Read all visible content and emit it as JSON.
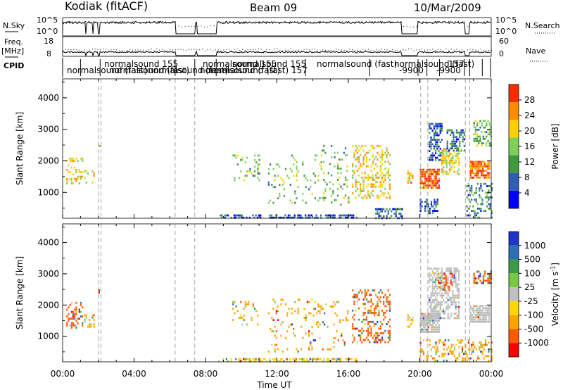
{
  "header": {
    "station": "Kodiak  (fitACF)",
    "beam": "Beam 09",
    "date": "10/Mar/2009"
  },
  "summary_panels": {
    "nsky_label": "N.Sky",
    "nsky_ticks": [
      "10^5",
      "10^0"
    ],
    "nsearch_label": "N.Search",
    "nsearch_ticks": [
      "10^5",
      "10^0"
    ],
    "freq_label_1": "Freq.",
    "freq_label_2": "[MHz]",
    "freq_ticks": [
      "18",
      "8"
    ],
    "nave_label": "Nave",
    "nave_ticks": [
      "60",
      "0"
    ],
    "cpid_label": "CPID",
    "cpid_labels": [
      "normalsound (fast)",
      "normalsound 155",
      "normalsound (fast)",
      "normalsound 155",
      "normalsound (fast)",
      "normalsound (fast)",
      "normalsound 155",
      "normalsound (fast) 157",
      "normalsound (fast)",
      "normalsound (fast)",
      "-9900",
      "-9900",
      "157"
    ]
  },
  "colors": {
    "power_scale": [
      "#0000ff",
      "#2f5fb0",
      "#3f9a3f",
      "#7fd05a",
      "#ffd000",
      "#ff8c00",
      "#ff2a00"
    ],
    "velocity_scale": [
      "#ff0000",
      "#ff5a00",
      "#ffa500",
      "#ffd700",
      "#c0c0c0",
      "#76c843",
      "#3a9a4a",
      "#2d6fb5",
      "#1f35c8"
    ],
    "ground_scatter": "#bbbbbb"
  },
  "chart_data": [
    {
      "type": "heatmap",
      "panel": "power",
      "ylabel": "Slant Range [km]",
      "yticks": [
        "1000",
        "2000",
        "3000",
        "4000"
      ],
      "ylim": [
        180,
        4600
      ],
      "xlim": [
        0,
        24
      ],
      "colorbar_label": "Power [dB]",
      "colorbar_ticks": [
        "4",
        "8",
        "12",
        "16",
        "20",
        "24",
        "28"
      ],
      "colorbar_range": [
        0,
        32
      ],
      "regions": [
        {
          "t0": 0.2,
          "t1": 1.1,
          "r0": 1300,
          "r1": 2100,
          "level": 20,
          "density": 0.35
        },
        {
          "t0": 1.2,
          "t1": 1.8,
          "r0": 1300,
          "r1": 1700,
          "level": 20,
          "density": 0.3
        },
        {
          "t0": 2.0,
          "t1": 2.1,
          "r0": 2400,
          "r1": 2500,
          "level": 12,
          "density": 0.5
        },
        {
          "t0": 8.7,
          "t1": 16.5,
          "r0": 180,
          "r1": 300,
          "level": 6,
          "density": 0.55
        },
        {
          "t0": 9.5,
          "t1": 11.0,
          "r0": 1400,
          "r1": 2200,
          "level": 14,
          "density": 0.18
        },
        {
          "t0": 11.5,
          "t1": 14.5,
          "r0": 500,
          "r1": 2200,
          "level": 14,
          "density": 0.08
        },
        {
          "t0": 14.5,
          "t1": 16.0,
          "r0": 600,
          "r1": 2500,
          "level": 14,
          "density": 0.12
        },
        {
          "t0": 16.2,
          "t1": 18.3,
          "r0": 800,
          "r1": 2500,
          "level": 20,
          "density": 0.35
        },
        {
          "t0": 17.5,
          "t1": 19.0,
          "r0": 180,
          "r1": 500,
          "level": 8,
          "density": 0.45
        },
        {
          "t0": 19.3,
          "t1": 19.6,
          "r0": 1300,
          "r1": 1700,
          "level": 22,
          "density": 0.5
        },
        {
          "t0": 20.0,
          "t1": 21.1,
          "r0": 1150,
          "r1": 1750,
          "level": 28,
          "density": 0.85
        },
        {
          "t0": 20.0,
          "t1": 21.0,
          "r0": 300,
          "r1": 800,
          "level": 6,
          "density": 0.5
        },
        {
          "t0": 20.5,
          "t1": 21.2,
          "r0": 2000,
          "r1": 3200,
          "level": 6,
          "density": 0.55
        },
        {
          "t0": 21.2,
          "t1": 22.2,
          "r0": 1600,
          "r1": 2400,
          "level": 20,
          "density": 0.6
        },
        {
          "t0": 21.5,
          "t1": 22.5,
          "r0": 2300,
          "r1": 3000,
          "level": 8,
          "density": 0.5
        },
        {
          "t0": 22.8,
          "t1": 23.9,
          "r0": 1450,
          "r1": 2000,
          "level": 28,
          "density": 0.75
        },
        {
          "t0": 23.0,
          "t1": 24.0,
          "r0": 2500,
          "r1": 3300,
          "level": 14,
          "density": 0.5
        },
        {
          "t0": 22.6,
          "t1": 24.0,
          "r0": 180,
          "r1": 1300,
          "level": 10,
          "density": 0.35
        }
      ]
    },
    {
      "type": "heatmap",
      "panel": "velocity",
      "ylabel": "Slant Range [km]",
      "xlabel": "Time UT",
      "xticks": [
        "00:00",
        "04:00",
        "08:00",
        "12:00",
        "16:00",
        "20:00",
        "00:00"
      ],
      "yticks": [
        "1000",
        "2000",
        "3000",
        "4000"
      ],
      "ylim": [
        180,
        4600
      ],
      "xlim": [
        0,
        24
      ],
      "colorbar_label": "Velocity [m s",
      "colorbar_unit_sup": "-1",
      "colorbar_unit_end": "]",
      "colorbar_ticks": [
        "1000",
        "500",
        "100",
        "25",
        "-25",
        "-100",
        "-500",
        "-1000"
      ],
      "regions": [
        {
          "t0": 0.2,
          "t1": 1.1,
          "r0": 1300,
          "r1": 2100,
          "level": 1,
          "density": 0.35
        },
        {
          "t0": 1.2,
          "t1": 1.8,
          "r0": 1300,
          "r1": 1700,
          "level": 2,
          "density": 0.3
        },
        {
          "t0": 2.0,
          "t1": 2.1,
          "r0": 2400,
          "r1": 2500,
          "level": 0,
          "density": 0.5
        },
        {
          "t0": 8.7,
          "t1": 16.5,
          "r0": 180,
          "r1": 300,
          "level": 3,
          "density": 0.5
        },
        {
          "t0": 9.5,
          "t1": 11.0,
          "r0": 1400,
          "r1": 2200,
          "level": 2,
          "density": 0.18
        },
        {
          "t0": 11.5,
          "t1": 16.0,
          "r0": 500,
          "r1": 2200,
          "level": 2,
          "density": 0.1
        },
        {
          "t0": 16.2,
          "t1": 18.3,
          "r0": 800,
          "r1": 2500,
          "level": 1,
          "density": 0.35
        },
        {
          "t0": 19.3,
          "t1": 19.6,
          "r0": 1300,
          "r1": 1700,
          "level": 2,
          "density": 0.5
        },
        {
          "t0": 20.0,
          "t1": 21.1,
          "r0": 1150,
          "r1": 1750,
          "level": 4,
          "density": 0.9
        },
        {
          "t0": 20.5,
          "t1": 22.2,
          "r0": 1600,
          "r1": 3200,
          "level": 4,
          "density": 0.55
        },
        {
          "t0": 21.0,
          "t1": 21.8,
          "r0": 2500,
          "r1": 3100,
          "level": 1,
          "density": 0.4
        },
        {
          "t0": 22.8,
          "t1": 23.9,
          "r0": 1450,
          "r1": 2000,
          "level": 4,
          "density": 0.8
        },
        {
          "t0": 23.0,
          "t1": 24.0,
          "r0": 2700,
          "r1": 3100,
          "level": 1,
          "density": 0.5
        },
        {
          "t0": 20.0,
          "t1": 24.0,
          "r0": 180,
          "r1": 900,
          "level": 2,
          "density": 0.3
        }
      ]
    }
  ]
}
